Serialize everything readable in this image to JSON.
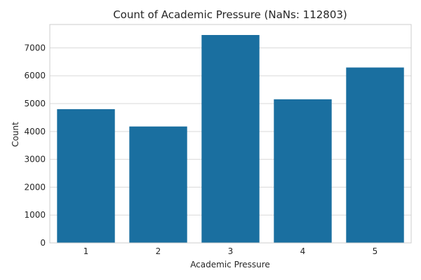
{
  "chart_data": {
    "type": "bar",
    "title": "Count of Academic Pressure (NaNs: 112803)",
    "xlabel": "Academic Pressure",
    "ylabel": "Count",
    "categories": [
      "1",
      "2",
      "3",
      "4",
      "5"
    ],
    "values": [
      4801,
      4179,
      7463,
      5155,
      6296
    ],
    "ylim": [
      0,
      7840
    ],
    "yticks": [
      0,
      1000,
      2000,
      3000,
      4000,
      5000,
      6000,
      7000
    ],
    "grid": true,
    "bar_color": "#1a6fa0",
    "grid_color": "#d9d9d9"
  }
}
